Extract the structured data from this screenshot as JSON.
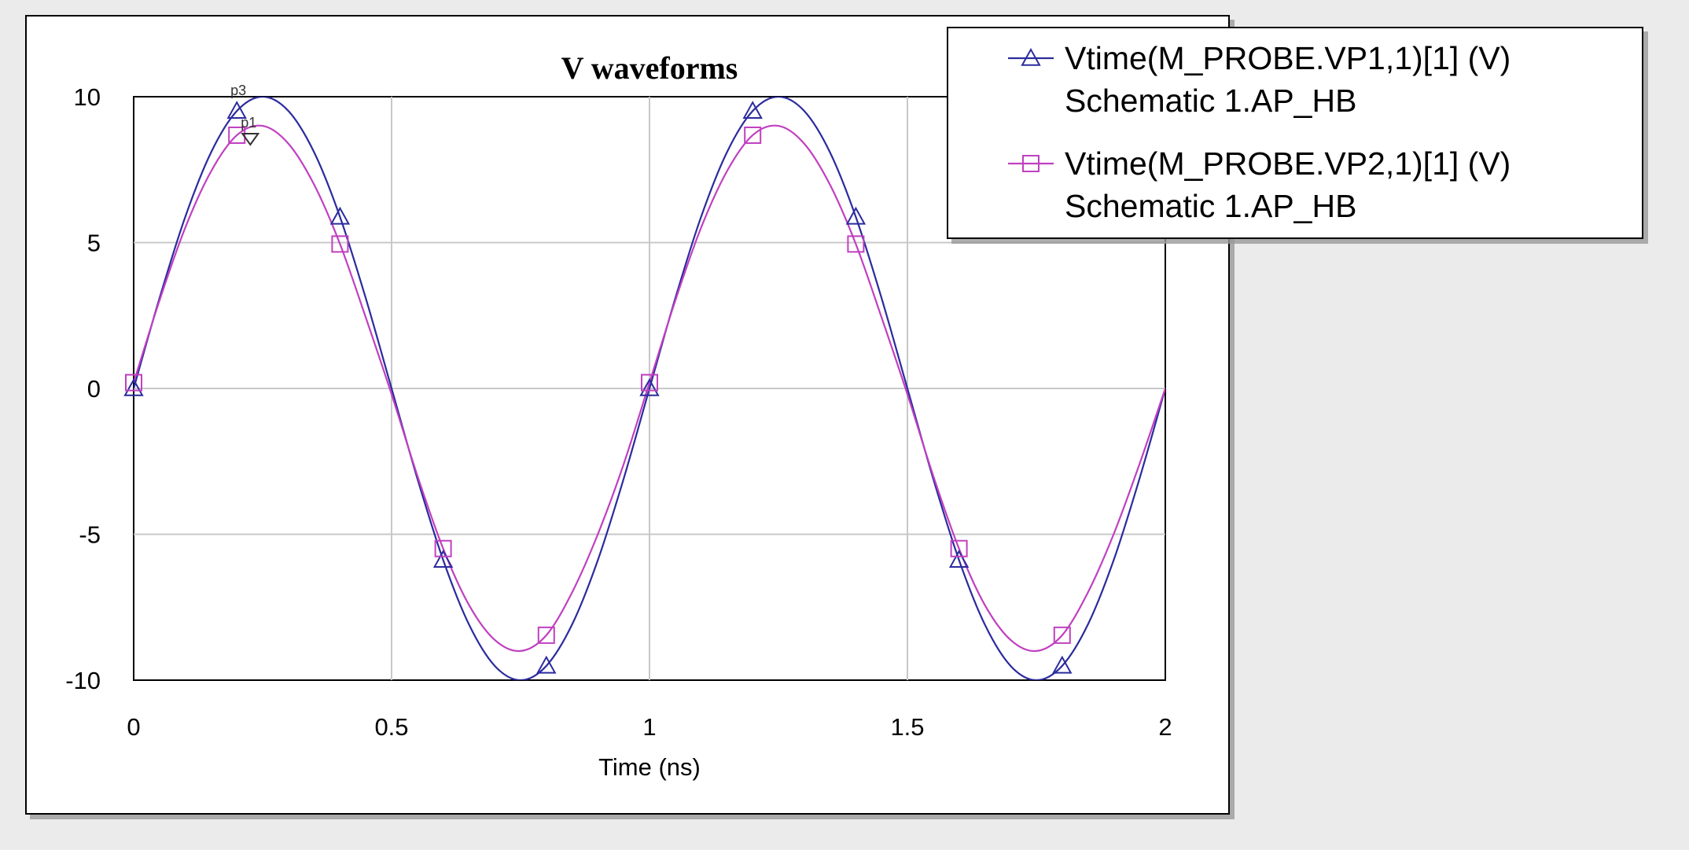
{
  "chart_data": {
    "type": "line",
    "title": "V waveforms",
    "xlabel": "Time (ns)",
    "ylabel": "",
    "xlim": [
      0,
      2
    ],
    "ylim": [
      -10,
      10
    ],
    "xticks": [
      "0",
      "0.5",
      "1",
      "1.5",
      "2"
    ],
    "yticks": [
      "10",
      "5",
      "0",
      "-5",
      "-10"
    ],
    "grid": true,
    "legend_position": "top-right",
    "series": [
      {
        "name": "Vtime(M_PROBE.VP1,1)[1] (V)",
        "name_line2": "Schematic 1.AP_HB",
        "color": "#2b2b9e",
        "marker": "triangle",
        "x": [
          0,
          0.05,
          0.1,
          0.15,
          0.2,
          0.25,
          0.3,
          0.35,
          0.4,
          0.45,
          0.5,
          0.55,
          0.6,
          0.65,
          0.7,
          0.75,
          0.8,
          0.85,
          0.9,
          0.95,
          1.0,
          1.05,
          1.1,
          1.15,
          1.2,
          1.25,
          1.3,
          1.35,
          1.4,
          1.45,
          1.5,
          1.55,
          1.6,
          1.65,
          1.7,
          1.75,
          1.8,
          1.85,
          1.9,
          1.95,
          2.0
        ],
        "y": [
          0,
          3.09,
          5.88,
          8.09,
          9.51,
          10,
          9.51,
          8.09,
          5.88,
          3.09,
          0,
          -3.09,
          -5.88,
          -8.09,
          -9.51,
          -10,
          -9.51,
          -8.09,
          -5.88,
          -3.09,
          0,
          3.09,
          5.88,
          8.09,
          9.51,
          10,
          9.51,
          8.09,
          5.88,
          3.09,
          0,
          -3.09,
          -5.88,
          -8.09,
          -9.51,
          -10,
          -9.51,
          -8.09,
          -5.88,
          -3.09,
          0
        ],
        "marker_x": [
          0,
          0.2,
          0.4,
          0.6,
          0.8,
          1.0,
          1.2,
          1.4,
          1.6,
          1.8
        ]
      },
      {
        "name": "Vtime(M_PROBE.VP2,1)[1] (V)",
        "name_line2": "Schematic 1.AP_HB",
        "color": "#c040c0",
        "marker": "square",
        "x": [
          0,
          0.05,
          0.1,
          0.15,
          0.2,
          0.25,
          0.3,
          0.35,
          0.4,
          0.45,
          0.5,
          0.55,
          0.6,
          0.65,
          0.7,
          0.75,
          0.8,
          0.85,
          0.9,
          0.95,
          1.0,
          1.05,
          1.1,
          1.15,
          1.2,
          1.25,
          1.3,
          1.35,
          1.4,
          1.45,
          1.5,
          1.55,
          1.6,
          1.65,
          1.7,
          1.75,
          1.8,
          1.85,
          1.9,
          1.95,
          2.0
        ],
        "y": [
          0.2,
          3.01,
          5.51,
          7.44,
          8.68,
          9.0,
          8.39,
          6.98,
          4.95,
          2.43,
          -0.2,
          -2.99,
          -5.49,
          -7.42,
          -8.62,
          -9.0,
          -8.46,
          -6.99,
          -4.99,
          -2.59,
          0.2,
          3.01,
          5.51,
          7.44,
          8.68,
          9.0,
          8.39,
          6.98,
          4.95,
          2.43,
          -0.2,
          -2.99,
          -5.49,
          -7.42,
          -8.62,
          -9.0,
          -8.46,
          -6.99,
          -4.99,
          -2.59,
          0.0
        ],
        "marker_x": [
          0,
          0.2,
          0.4,
          0.6,
          0.8,
          1.0,
          1.2,
          1.4,
          1.6,
          1.8
        ]
      }
    ],
    "annotations": [
      {
        "label": "p3",
        "x": 0.2,
        "y": 9.51
      },
      {
        "label": "p1",
        "x": 0.22,
        "y": 8.68
      }
    ]
  }
}
